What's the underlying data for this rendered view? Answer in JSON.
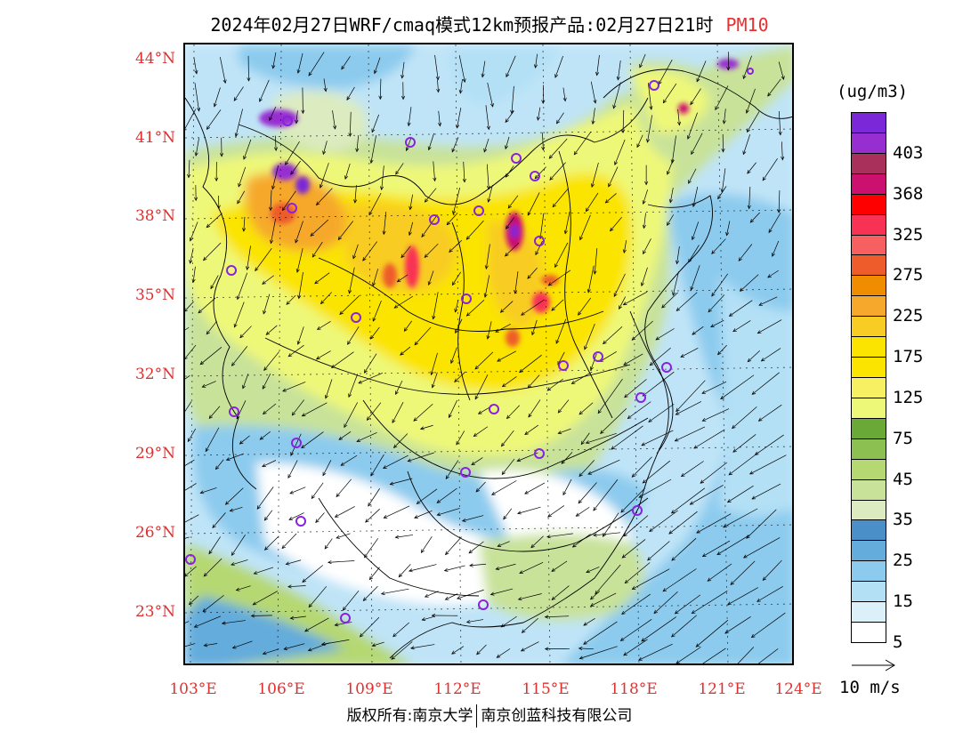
{
  "title": {
    "main": "2024年02月27日WRF/cmaq模式12km预报产品:02月27日21时",
    "pollutant": "PM10"
  },
  "map": {
    "lat_labels": [
      "44°N",
      "41°N",
      "38°N",
      "35°N",
      "32°N",
      "29°N",
      "26°N",
      "23°N"
    ],
    "lon_labels": [
      "103°E",
      "106°E",
      "109°E",
      "112°E",
      "115°E",
      "118°E",
      "121°E",
      "124°E"
    ]
  },
  "colorbar": {
    "unit": "(ug/m3)",
    "colors": [
      "#ffffff",
      "#dcf0fa",
      "#b4e0f6",
      "#8ccbee",
      "#64acdc",
      "#4a8fc8",
      "#dcebc0",
      "#c8e29a",
      "#b6d872",
      "#8cc050",
      "#6aa838",
      "#eef878",
      "#f6f062",
      "#fae400",
      "#fae400",
      "#f8cc22",
      "#f6a82c",
      "#f08c00",
      "#ee5c2c",
      "#f66060",
      "#f83254",
      "#ff0000",
      "#cc1070",
      "#a8305a",
      "#962ed0",
      "#7a28d8"
    ],
    "labels": [
      "403",
      "368",
      "325",
      "275",
      "225",
      "175",
      "125",
      "75",
      "45",
      "35",
      "25",
      "15",
      "5"
    ]
  },
  "wind_reference": {
    "label": "10 m/s"
  },
  "footer": {
    "copyright_left": "版权所有:南京大学",
    "copyright_right": "南京创蓝科技有限公司"
  }
}
